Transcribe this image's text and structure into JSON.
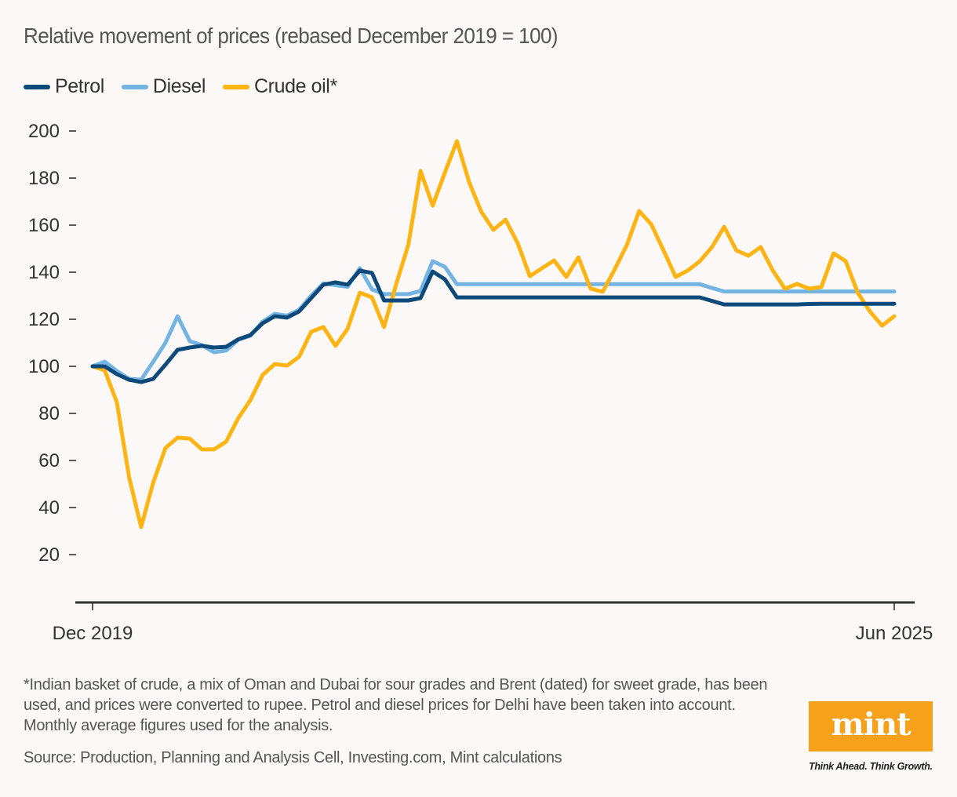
{
  "title": "Relative movement of prices (rebased December 2019 = 100)",
  "legend": [
    {
      "label": "Petrol",
      "color": "#0d4a7a"
    },
    {
      "label": "Diesel",
      "color": "#74b4e3"
    },
    {
      "label": "Crude oil*",
      "color": "#ffb414"
    }
  ],
  "footnote": "*Indian basket of crude, a mix of Oman and Dubai for sour grades and Brent (dated) for sweet grade, has been used, and prices were converted to rupee. Petrol and diesel prices for Delhi have been taken into account. Monthly average figures used for the analysis.",
  "source": "Source: Production, Planning and Analysis Cell, Investing.com, Mint calculations",
  "logo": {
    "text": "mint",
    "tagline": "Think Ahead. Think Growth.",
    "color": "#f7a11a"
  },
  "chart_data": {
    "type": "line",
    "title": "Relative movement of prices (rebased December 2019 = 100)",
    "xlabel": "",
    "ylabel": "",
    "x_start": "Dec 2019",
    "x_end": "Jun 2025",
    "x_tick_labels": [
      "Dec 2019",
      "Jun 2025"
    ],
    "frequency": "monthly",
    "ylim": [
      0,
      205
    ],
    "y_ticks": [
      20,
      40,
      60,
      80,
      100,
      120,
      140,
      160,
      180,
      200
    ],
    "grid": false,
    "legend_position": "top-left",
    "series": [
      {
        "name": "Petrol",
        "color": "#0d4a7a",
        "values": [
          100,
          100,
          96.7,
          94.3,
          93.3,
          94.7,
          100.7,
          107,
          108,
          108.7,
          108,
          108.3,
          111.5,
          113.3,
          118.3,
          121.3,
          120.7,
          123.3,
          129,
          134.7,
          135.7,
          134.7,
          140.7,
          139.7,
          128,
          128,
          128,
          129,
          140.3,
          137,
          129.3,
          129.3,
          129.3,
          129.3,
          129.3,
          129.3,
          129.3,
          129.3,
          129.3,
          129.3,
          129.3,
          129.3,
          129.3,
          129.3,
          129.3,
          129.3,
          129.3,
          129.3,
          129.3,
          129.3,
          129.3,
          127.8,
          126.3,
          126.3,
          126.3,
          126.3,
          126.3,
          126.3,
          126.3,
          126.5,
          126.6,
          126.6,
          126.6,
          126.6,
          126.6,
          126.6,
          126.6
        ]
      },
      {
        "name": "Diesel",
        "color": "#74b4e3",
        "values": [
          100,
          102,
          98,
          94.7,
          94.3,
          102,
          110,
          121.3,
          110.7,
          109,
          106,
          106.7,
          111.3,
          113,
          119,
          122.3,
          121.5,
          124,
          130,
          135.2,
          134.5,
          133.8,
          141.7,
          132.7,
          130.7,
          130.7,
          130.7,
          132,
          144.7,
          142.3,
          134.9,
          134.9,
          134.9,
          134.9,
          134.9,
          134.9,
          134.9,
          134.9,
          134.9,
          134.9,
          134.9,
          134.9,
          134.9,
          134.9,
          134.9,
          134.9,
          134.9,
          134.9,
          134.9,
          134.9,
          134.9,
          133.3,
          131.8,
          131.8,
          131.8,
          131.8,
          131.8,
          131.8,
          131.8,
          131.8,
          131.8,
          131.8,
          131.8,
          131.8,
          131.8,
          131.8,
          131.8
        ]
      },
      {
        "name": "Crude oil*",
        "color": "#ffb414",
        "values": [
          100,
          98.3,
          84.7,
          53,
          31.7,
          50.7,
          65.3,
          69.7,
          69.3,
          64.7,
          64.7,
          68,
          78,
          85.7,
          96.3,
          101,
          100.3,
          104,
          114.7,
          116.7,
          108.7,
          116,
          131.3,
          129.3,
          116.7,
          135,
          151.7,
          183,
          168.3,
          182.3,
          195.7,
          178.3,
          165.7,
          158,
          162.3,
          152.3,
          138.3,
          141.7,
          145,
          138,
          146.3,
          133,
          131.7,
          141.3,
          151.7,
          166,
          160.3,
          149.3,
          138,
          140.7,
          144.7,
          150.7,
          159.3,
          149.3,
          147,
          150.7,
          140.7,
          133,
          135,
          133,
          133.7,
          148,
          144.7,
          131.3,
          123.3,
          117.3,
          121.3
        ]
      }
    ]
  }
}
